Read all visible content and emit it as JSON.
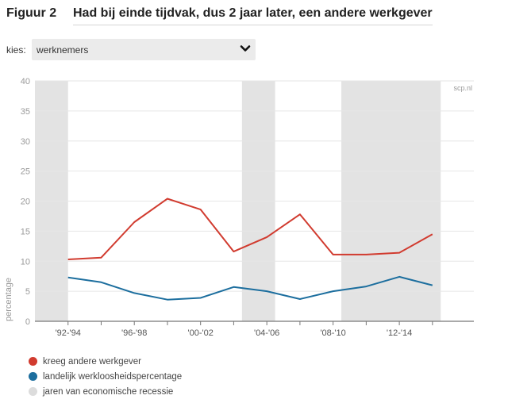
{
  "header": {
    "figure_label": "Figuur 2",
    "title": "Had bij einde tijdvak, dus 2 jaar later, een andere werkgever"
  },
  "selector": {
    "label": "kies:",
    "value": "werknemers",
    "icon": "chevron-down-icon"
  },
  "legend": [
    {
      "label": "kreeg andere werkgever",
      "color": "#d13b2f"
    },
    {
      "label": "landelijk werkloosheidspercentage",
      "color": "#1c6e9e"
    },
    {
      "label": "jaren van economische recessie",
      "color": "#dcdcdc"
    }
  ],
  "chart_data": {
    "type": "line",
    "source_note": "scp.nl",
    "ylabel": "percentage",
    "ylim": [
      0,
      40
    ],
    "yticks": [
      "0",
      "5",
      "10",
      "15",
      "20",
      "25",
      "30",
      "35",
      "40"
    ],
    "xlim": [
      1991,
      2017.5
    ],
    "xticks": [
      {
        "x": 1993,
        "label": "'92-'94"
      },
      {
        "x": 1997,
        "label": "'96-'98"
      },
      {
        "x": 2001,
        "label": "'00-'02"
      },
      {
        "x": 2005,
        "label": "'04-'06"
      },
      {
        "x": 2009,
        "label": "'08-'10"
      },
      {
        "x": 2013,
        "label": "'12-'14"
      }
    ],
    "x": [
      1993,
      1995,
      1997,
      1999,
      2001,
      2003,
      2005,
      2007,
      2009,
      2011,
      2013,
      2015
    ],
    "series": [
      {
        "name": "kreeg andere werkgever",
        "color": "#d13b2f",
        "values": [
          10.3,
          10.6,
          16.5,
          20.4,
          18.6,
          11.6,
          14.0,
          17.8,
          11.1,
          11.1,
          11.4,
          14.5
        ]
      },
      {
        "name": "landelijk werkloosheidspercentage",
        "color": "#1c6e9e",
        "values": [
          7.3,
          6.5,
          4.7,
          3.6,
          3.9,
          5.7,
          5.0,
          3.7,
          5.0,
          5.8,
          7.4,
          6.0
        ]
      }
    ],
    "recession_periods": [
      [
        1991,
        1993
      ],
      [
        2003.5,
        2005.5
      ],
      [
        2009.5,
        2015.5
      ]
    ],
    "grid": true
  }
}
